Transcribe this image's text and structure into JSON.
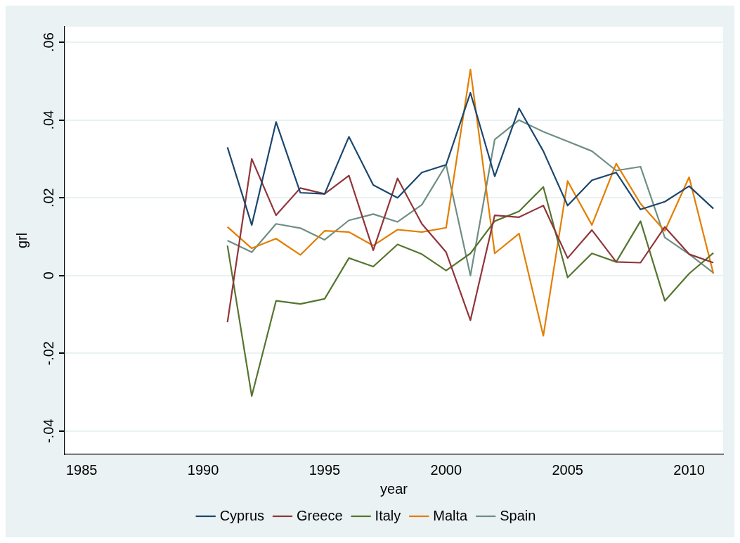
{
  "chart_data": {
    "type": "line",
    "xlabel": "year",
    "ylabel": "grl",
    "x": [
      1991,
      1992,
      1993,
      1994,
      1995,
      1996,
      1997,
      1998,
      1999,
      2000,
      2001,
      2002,
      2003,
      2004,
      2005,
      2006,
      2007,
      2008,
      2009,
      2010,
      2011
    ],
    "series": [
      {
        "name": "Cyprus",
        "color": "#1a476f",
        "values": [
          0.033,
          0.013,
          0.0395,
          0.0213,
          0.021,
          0.0357,
          0.0233,
          0.02,
          0.0265,
          0.0285,
          0.047,
          0.0255,
          0.043,
          0.032,
          0.018,
          0.0245,
          0.0265,
          0.017,
          0.019,
          0.023,
          0.0172
        ]
      },
      {
        "name": "Greece",
        "color": "#90353b",
        "values": [
          -0.012,
          0.03,
          0.0155,
          0.0225,
          0.021,
          0.0257,
          0.0065,
          0.025,
          0.0133,
          0.006,
          -0.0115,
          0.0155,
          0.015,
          0.018,
          0.0045,
          0.0117,
          0.0035,
          0.0033,
          0.0125,
          0.0055,
          0.0033
        ]
      },
      {
        "name": "Italy",
        "color": "#55752f",
        "values": [
          0.0077,
          -0.031,
          -0.0065,
          -0.0073,
          -0.006,
          0.0045,
          0.0023,
          0.008,
          0.0055,
          0.0013,
          0.0057,
          0.014,
          0.0165,
          0.0228,
          -0.0005,
          0.0057,
          0.0035,
          0.014,
          -0.0065,
          0.0005,
          0.0058
        ]
      },
      {
        "name": "Malta",
        "color": "#e37e00",
        "values": [
          0.0125,
          0.007,
          0.0095,
          0.0053,
          0.0115,
          0.0112,
          0.0077,
          0.0118,
          0.0112,
          0.0123,
          0.053,
          0.0057,
          0.0108,
          -0.0155,
          0.0243,
          0.013,
          0.0288,
          0.0185,
          0.0115,
          0.0253,
          0.0005
        ]
      },
      {
        "name": "Spain",
        "color": "#6e8e84",
        "values": [
          0.009,
          0.006,
          0.0133,
          0.0122,
          0.0092,
          0.0142,
          0.0158,
          0.0138,
          0.0182,
          0.0285,
          0,
          0.035,
          0.04,
          0.037,
          0.0345,
          0.032,
          0.027,
          0.028,
          0.0098,
          0.0055,
          0.0007
        ]
      }
    ],
    "xlim": [
      1984.3,
      2011.4
    ],
    "xticks": [
      1985,
      1990,
      1995,
      2000,
      2005,
      2010
    ],
    "ylim": [
      -0.046,
      0.064
    ],
    "yticks": [
      {
        "value": -0.04,
        "label": "-.04"
      },
      {
        "value": -0.02,
        "label": "-.02"
      },
      0,
      {
        "value": 0.02,
        "label": ".02"
      },
      {
        "value": 0.04,
        "label": ".04"
      },
      {
        "value": 0.06,
        "label": ".06"
      }
    ],
    "grid": "y",
    "legend": "bottom",
    "marker": "none",
    "line_style": "solid"
  }
}
